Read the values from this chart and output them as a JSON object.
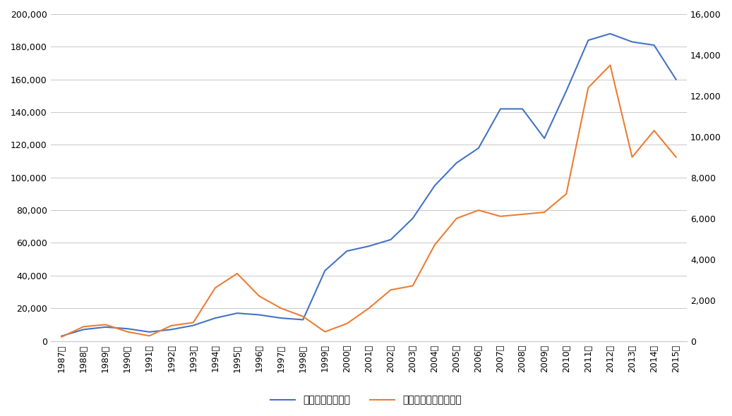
{
  "years": [
    1987,
    1988,
    1989,
    1990,
    1991,
    1992,
    1993,
    1994,
    1995,
    1996,
    1997,
    1998,
    1999,
    2000,
    2001,
    2002,
    2003,
    2004,
    2005,
    2006,
    2007,
    2008,
    2009,
    2010,
    2011,
    2012,
    2013,
    2014,
    2015
  ],
  "imports": [
    3000,
    7000,
    8500,
    7500,
    5500,
    7000,
    9500,
    14000,
    17000,
    16000,
    14000,
    13000,
    43000,
    55000,
    58000,
    62000,
    75000,
    95000,
    109000,
    118000,
    142000,
    142000,
    124000,
    153000,
    184000,
    188000,
    183000,
    181000,
    160000
  ],
  "fdi": [
    200,
    700,
    800,
    450,
    250,
    750,
    900,
    2600,
    3300,
    2200,
    1600,
    1200,
    450,
    850,
    1600,
    2500,
    2700,
    4700,
    6000,
    6400,
    6100,
    6200,
    6300,
    7200,
    12400,
    13500,
    9000,
    10300,
    9000
  ],
  "import_color": "#4472C4",
  "fdi_color": "#ED7D31",
  "left_ylim": [
    0,
    200000
  ],
  "right_ylim": [
    0,
    16000
  ],
  "left_yticks": [
    0,
    20000,
    40000,
    60000,
    80000,
    100000,
    120000,
    140000,
    160000,
    180000,
    200000
  ],
  "right_yticks": [
    0,
    2000,
    4000,
    6000,
    8000,
    10000,
    12000,
    14000,
    16000
  ],
  "legend_import": "対中輸入（左軸）",
  "legend_fdi": "対中直接投資（右軸）",
  "background_color": "#ffffff",
  "grid_color": "#c8c8c8",
  "line_width": 1.5
}
